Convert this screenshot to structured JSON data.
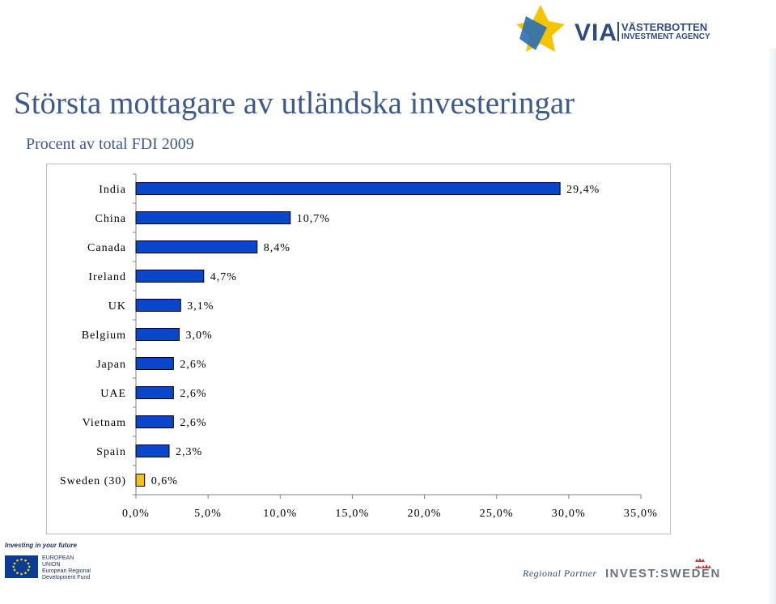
{
  "header": {
    "title": "Största mottagare av utländska investeringar",
    "subtitle": "Procent av total FDI 2009"
  },
  "logos": {
    "via_letters": "VIA",
    "via_line1": "VÄSTERBOTTEN",
    "via_line2": "INVESTMENT AGENCY",
    "eu_caption": "Investing in your future",
    "eu_lines": [
      "EUROPEAN",
      "UNION",
      "European Regional",
      "Development Fund"
    ],
    "regional_partner": "Regional Partner",
    "invest_sweden": "INVEST:SWEDEN"
  },
  "colors": {
    "bar": "#0a47c8",
    "bar_highlight": "#f2c21b",
    "title": "#3c5a8c",
    "via_blue": "#2f4a7f",
    "via_yellow": "#f5c400"
  },
  "chart_data": {
    "type": "bar",
    "orientation": "horizontal",
    "categories": [
      "India",
      "China",
      "Canada",
      "Ireland",
      "UK",
      "Belgium",
      "Japan",
      "UAE",
      "Vietnam",
      "Spain",
      "Sweden (30)"
    ],
    "values": [
      29.4,
      10.7,
      8.4,
      4.7,
      3.1,
      3.0,
      2.6,
      2.6,
      2.6,
      2.3,
      0.6
    ],
    "value_labels": [
      "29,4%",
      "10,7%",
      "8,4%",
      "4,7%",
      "3,1%",
      "3,0%",
      "2,6%",
      "2,6%",
      "2,6%",
      "2,3%",
      "0,6%"
    ],
    "highlight_category": "Sweden (30)",
    "xlim": [
      0,
      35
    ],
    "xticks": [
      0,
      5,
      10,
      15,
      20,
      25,
      30,
      35
    ],
    "xtick_labels": [
      "0,0%",
      "5,0%",
      "10,0%",
      "15,0%",
      "20,0%",
      "25,0%",
      "30,0%",
      "35,0%"
    ],
    "grid": false,
    "legend": "none"
  }
}
